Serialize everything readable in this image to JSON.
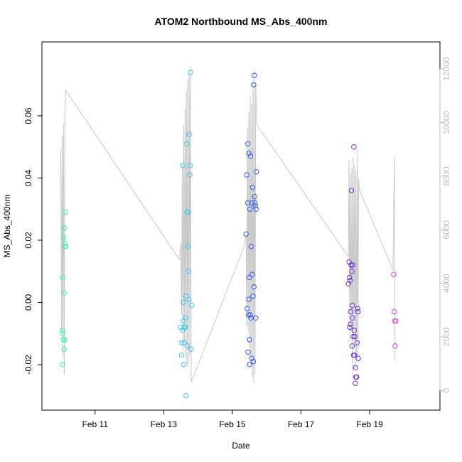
{
  "chart_data": {
    "type": "scatter",
    "title": "ATOM2 Northbound MS_Abs_400nm",
    "xlabel": "Date",
    "ylabel": "MS_Abs_400nm",
    "x_ticks": [
      "Feb 11",
      "Feb 13",
      "Feb 15",
      "Feb 17",
      "Feb 19"
    ],
    "y_ticks": [
      "-0.02",
      "0.00",
      "0.02",
      "0.04",
      "0.06"
    ],
    "y2_ticks": [
      "0",
      "2000",
      "4000",
      "6000",
      "8000",
      "10000",
      "12000"
    ],
    "xlim_days": [
      9.7,
      20.8
    ],
    "ylim": [
      -0.0335,
      0.0785
    ],
    "y2lim": [
      -600,
      12400
    ],
    "grid": false,
    "legend": "none",
    "colors": {
      "line": "#c8c8c8",
      "axis": "#000000",
      "right_axis": "#bdbdbd"
    },
    "series": [
      {
        "color": "#33f5b0",
        "points": [
          [
            10.05,
            0.008
          ],
          [
            10.05,
            -0.009
          ],
          [
            10.05,
            -0.01
          ],
          [
            10.05,
            -0.02
          ],
          [
            10.08,
            0.021
          ],
          [
            10.08,
            -0.012
          ],
          [
            10.1,
            0.003
          ],
          [
            10.1,
            -0.015
          ],
          [
            10.1,
            0.024
          ],
          [
            10.12,
            -0.012
          ],
          [
            10.12,
            0.018
          ],
          [
            10.12,
            0.019
          ],
          [
            10.14,
            0.029
          ],
          [
            10.14,
            0.018
          ]
        ]
      },
      {
        "color": "#38c8f0",
        "points": [
          [
            13.5,
            -0.008
          ],
          [
            13.52,
            -0.017
          ],
          [
            13.53,
            -0.013
          ],
          [
            13.55,
            -0.009
          ],
          [
            13.56,
            0.044
          ],
          [
            13.57,
            -0.006
          ],
          [
            13.57,
            0.0
          ],
          [
            13.58,
            -0.02
          ],
          [
            13.6,
            -0.013
          ],
          [
            13.6,
            -0.008
          ],
          [
            13.63,
            -0.008
          ],
          [
            13.63,
            -0.005
          ],
          [
            13.65,
            0.002
          ],
          [
            13.65,
            -0.03
          ],
          [
            13.67,
            0.051
          ],
          [
            13.68,
            0.029
          ],
          [
            13.68,
            -0.014
          ],
          [
            13.7,
            0.029
          ],
          [
            13.71,
            0.018
          ],
          [
            13.72,
            0.01
          ],
          [
            13.73,
            0.001
          ],
          [
            13.74,
            0.054
          ],
          [
            13.76,
            0.041
          ],
          [
            13.77,
            0.044
          ],
          [
            13.78,
            0.074
          ],
          [
            13.8,
            -0.015
          ],
          [
            13.82,
            -0.001
          ]
        ]
      },
      {
        "color": "#2f5cf0",
        "points": [
          [
            15.4,
            0.022
          ],
          [
            15.42,
            0.041
          ],
          [
            15.43,
            -0.002
          ],
          [
            15.45,
            0.051
          ],
          [
            15.45,
            0.032
          ],
          [
            15.46,
            -0.016
          ],
          [
            15.47,
            -0.004
          ],
          [
            15.48,
            0.048
          ],
          [
            15.48,
            0.001
          ],
          [
            15.49,
            0.008
          ],
          [
            15.5,
            -0.012
          ],
          [
            15.5,
            -0.02
          ],
          [
            15.51,
            0.03
          ],
          [
            15.52,
            -0.004
          ],
          [
            15.53,
            0.047
          ],
          [
            15.54,
            -0.005
          ],
          [
            15.55,
            0.018
          ],
          [
            15.56,
            -0.018
          ],
          [
            15.57,
            0.032
          ],
          [
            15.58,
            0.009
          ],
          [
            15.59,
            0.037
          ],
          [
            15.6,
            0.002
          ],
          [
            15.61,
            -0.019
          ],
          [
            15.62,
            0.07
          ],
          [
            15.63,
            0.005
          ],
          [
            15.64,
            0.073
          ],
          [
            15.65,
            0.034
          ],
          [
            15.66,
            0.032
          ],
          [
            15.67,
            0.031
          ],
          [
            15.68,
            -0.005
          ],
          [
            15.69,
            0.03
          ],
          [
            15.7,
            0.042
          ]
        ]
      },
      {
        "color": "#6b30e0",
        "points": [
          [
            18.38,
            0.006
          ],
          [
            18.4,
            0.013
          ],
          [
            18.41,
            0.008
          ],
          [
            18.42,
            -0.008
          ],
          [
            18.43,
            0.007
          ],
          [
            18.44,
            -0.007
          ],
          [
            18.45,
            -0.003
          ],
          [
            18.46,
            0.012
          ],
          [
            18.47,
            0.036
          ],
          [
            18.48,
            0.01
          ],
          [
            18.49,
            -0.014
          ],
          [
            18.5,
            -0.001
          ],
          [
            18.5,
            -0.005
          ],
          [
            18.51,
            0.012
          ],
          [
            18.52,
            -0.011
          ],
          [
            18.53,
            -0.017
          ],
          [
            18.54,
            0.05
          ],
          [
            18.55,
            -0.009
          ],
          [
            18.56,
            -0.017
          ],
          [
            18.57,
            -0.011
          ],
          [
            18.58,
            -0.026
          ],
          [
            18.59,
            -0.021
          ],
          [
            18.6,
            -0.024
          ],
          [
            18.62,
            -0.024
          ],
          [
            18.63,
            -0.013
          ],
          [
            18.65,
            -0.002
          ],
          [
            18.66,
            -0.003
          ],
          [
            18.67,
            -0.018
          ]
        ]
      },
      {
        "color": "#e040e8",
        "points": [
          [
            19.7,
            0.009
          ],
          [
            19.72,
            -0.003
          ],
          [
            19.73,
            -0.006
          ],
          [
            19.74,
            -0.014
          ],
          [
            19.76,
            -0.006
          ]
        ]
      }
    ],
    "line_series": {
      "axis": "right",
      "points": [
        [
          10.0,
          9000
        ],
        [
          10.02,
          2200
        ],
        [
          10.04,
          9500
        ],
        [
          10.06,
          1200
        ],
        [
          10.08,
          10000
        ],
        [
          10.1,
          600
        ],
        [
          10.12,
          10600
        ],
        [
          10.15,
          11200
        ],
        [
          13.45,
          4900
        ],
        [
          13.5,
          5500
        ],
        [
          13.52,
          2800
        ],
        [
          13.54,
          8400
        ],
        [
          13.56,
          1500
        ],
        [
          13.58,
          9900
        ],
        [
          13.6,
          1800
        ],
        [
          13.62,
          10500
        ],
        [
          13.64,
          1200
        ],
        [
          13.66,
          11200
        ],
        [
          13.68,
          900
        ],
        [
          13.7,
          11600
        ],
        [
          13.72,
          1000
        ],
        [
          13.74,
          11800
        ],
        [
          13.76,
          1300
        ],
        [
          13.78,
          12100
        ],
        [
          13.8,
          300
        ],
        [
          15.35,
          5400
        ],
        [
          15.4,
          5800
        ],
        [
          15.42,
          2400
        ],
        [
          15.44,
          9800
        ],
        [
          15.46,
          2200
        ],
        [
          15.48,
          10400
        ],
        [
          15.5,
          1600
        ],
        [
          15.52,
          11000
        ],
        [
          15.54,
          900
        ],
        [
          15.56,
          10700
        ],
        [
          15.58,
          500
        ],
        [
          15.6,
          11600
        ],
        [
          15.62,
          300
        ],
        [
          15.64,
          11900
        ],
        [
          15.66,
          600
        ],
        [
          15.68,
          11400
        ],
        [
          15.72,
          9900
        ],
        [
          18.38,
          5000
        ],
        [
          18.4,
          8600
        ],
        [
          18.42,
          1800
        ],
        [
          18.44,
          8100
        ],
        [
          18.46,
          2200
        ],
        [
          18.48,
          8300
        ],
        [
          18.5,
          400
        ],
        [
          18.52,
          8700
        ],
        [
          18.54,
          1900
        ],
        [
          18.56,
          8400
        ],
        [
          18.58,
          800
        ],
        [
          18.6,
          8200
        ],
        [
          18.62,
          1200
        ],
        [
          18.64,
          9000
        ],
        [
          18.66,
          1300
        ],
        [
          18.68,
          7900
        ],
        [
          18.7,
          7500
        ],
        [
          19.68,
          4500
        ],
        [
          19.72,
          8700
        ],
        [
          19.74,
          1100
        ]
      ]
    }
  }
}
